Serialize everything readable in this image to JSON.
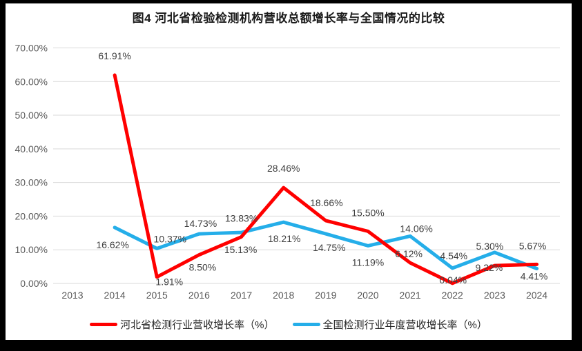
{
  "title": "图4  河北省检验检测机构营收总额增长率与全国情况的比较",
  "chart_data": {
    "type": "line",
    "categories": [
      "2013",
      "2014",
      "2015",
      "2016",
      "2017",
      "2018",
      "2019",
      "2020",
      "2021",
      "2022",
      "2023",
      "2024"
    ],
    "series": [
      {
        "name": "全国检测行业年度营收增长率（%）",
        "color": "#25AEE9",
        "start_index": 1,
        "values": [
          16.62,
          10.37,
          14.73,
          15.13,
          18.21,
          14.75,
          11.19,
          14.06,
          4.54,
          9.22,
          4.41
        ],
        "labels": [
          "16.62%",
          "10.37%",
          "14.73%",
          "15.13%",
          "18.21%",
          "14.75%",
          "11.19%",
          "14.06%",
          "4.54%",
          "9.22%",
          "4.41%"
        ]
      },
      {
        "name": "河北省检测行业营收增长率（%）",
        "color": "#FF0000",
        "start_index": 1,
        "values": [
          61.91,
          1.91,
          8.5,
          13.83,
          28.46,
          18.66,
          15.5,
          6.12,
          0.04,
          5.3,
          5.67
        ],
        "labels": [
          "61.91%",
          "1.91%",
          "8.50%",
          "13.83%",
          "28.46%",
          "18.66%",
          "15.50%",
          "6.12%",
          "0.04%",
          "5.30%",
          "5.67%"
        ]
      }
    ],
    "ylim": [
      0,
      70
    ],
    "ytick_step": 10,
    "ytick_labels": [
      "0.00%",
      "10.00%",
      "20.00%",
      "30.00%",
      "40.00%",
      "50.00%",
      "60.00%",
      "70.00%"
    ],
    "grid": true,
    "legend_position": "bottom"
  },
  "legend": {
    "items": [
      {
        "label": "河北省检测行业营收增长率（%）",
        "color": "#FF0000"
      },
      {
        "label": "全国检测行业年度营收增长率（%）",
        "color": "#25AEE9"
      }
    ]
  }
}
